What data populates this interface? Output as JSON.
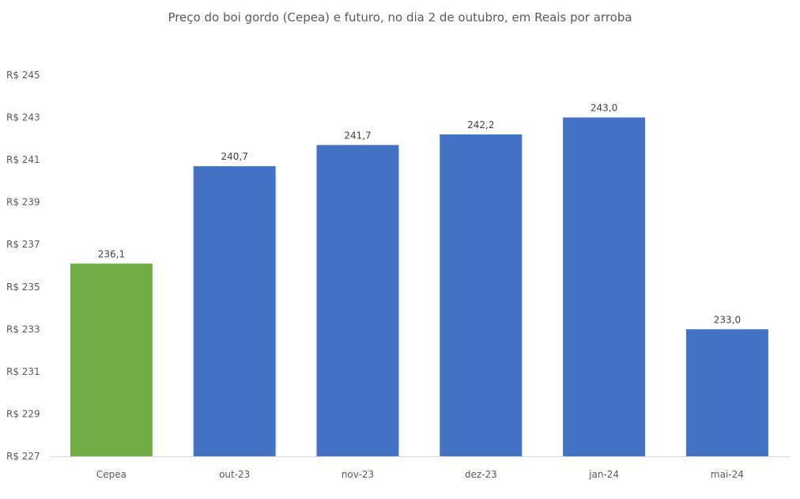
{
  "chart_data": {
    "type": "bar",
    "title": "Preço do boi gordo (Cepea) e futuro, no dia 2 de outubro, em Reais por arroba",
    "xlabel": "",
    "ylabel": "",
    "categories": [
      "Cepea",
      "out-23",
      "nov-23",
      "dez-23",
      "jan-24",
      "mai-24"
    ],
    "values": [
      236.1,
      240.7,
      241.7,
      242.2,
      243.0,
      233.0
    ],
    "data_labels": [
      "236,1",
      "240,7",
      "241,7",
      "242,2",
      "243,0",
      "233,0"
    ],
    "bar_colors": [
      "#70AD47",
      "#4472C4",
      "#4472C4",
      "#4472C4",
      "#4472C4",
      "#4472C4"
    ],
    "ylim": [
      227,
      245
    ],
    "yticks": [
      227,
      229,
      231,
      233,
      235,
      237,
      239,
      241,
      243,
      245
    ],
    "ytick_labels": [
      "R$ 227",
      "R$ 229",
      "R$ 231",
      "R$ 233",
      "R$ 235",
      "R$ 237",
      "R$ 239",
      "R$ 241",
      "R$ 243",
      "R$ 245"
    ],
    "grid": false,
    "legend": "none"
  }
}
